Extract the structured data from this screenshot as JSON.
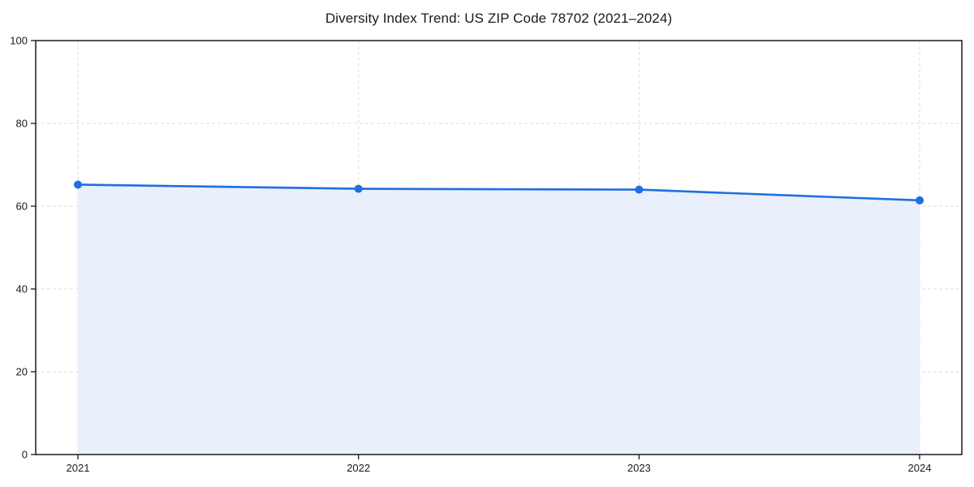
{
  "chart_data": {
    "type": "area",
    "title": "Diversity Index Trend: US ZIP Code 78702 (2021–2024)",
    "x": [
      "2021",
      "2022",
      "2023",
      "2024"
    ],
    "series": [
      {
        "name": "Diversity Index",
        "values": [
          65.2,
          64.2,
          64.0,
          61.4
        ]
      }
    ],
    "xlabel": "",
    "ylabel": "",
    "ylim": [
      0,
      100
    ],
    "yticks": [
      0,
      20,
      40,
      60,
      80,
      100
    ],
    "grid": true,
    "grid_style": "dashed",
    "legend": "none",
    "colors": {
      "line": "#1f6fe1",
      "marker": "#1f6fe1",
      "fill": "#e9f0fb",
      "grid": "#dedede",
      "spine": "#1a1a1a",
      "tick_label": "#1a1a1a",
      "background": "#ffffff"
    }
  }
}
